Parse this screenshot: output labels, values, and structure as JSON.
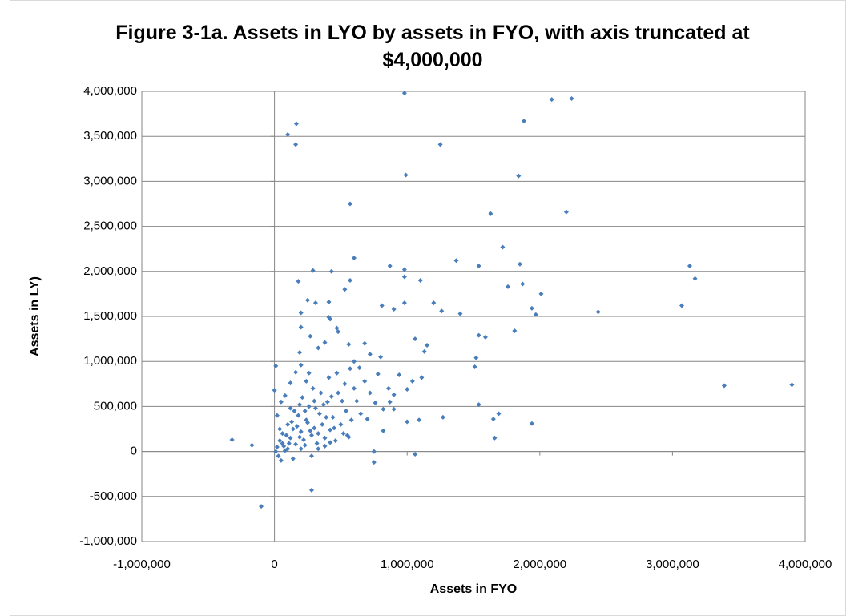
{
  "chart_data": {
    "type": "scatter",
    "title": "Figure 3-1a. Assets in LYO by assets in FYO, with axis truncated at $4,000,000",
    "x_label": "Assets in FYO",
    "y_label": "Assets in LY)",
    "color": "#4a7ebb",
    "grid": true,
    "xlim": [
      -1000000,
      4000000
    ],
    "ylim": [
      -1000000,
      4000000
    ],
    "xticks": [
      {
        "value": -1000000,
        "label": "-1,000,000"
      },
      0,
      {
        "value": 1000000,
        "label": "1,000,000"
      },
      {
        "value": 2000000,
        "label": "2,000,000"
      },
      {
        "value": 3000000,
        "label": "3,000,000"
      },
      {
        "value": 4000000,
        "label": "4,000,000"
      }
    ],
    "yticks": [
      {
        "value": -1000000,
        "label": "-1,000,000"
      },
      {
        "value": -500000,
        "label": "-500,000"
      },
      0,
      {
        "value": 500000,
        "label": "500,000"
      },
      {
        "value": 1000000,
        "label": "1,000,000"
      },
      {
        "value": 1500000,
        "label": "1,500,000"
      },
      {
        "value": 2000000,
        "label": "2,000,000"
      },
      {
        "value": 2500000,
        "label": "2,500,000"
      },
      {
        "value": 3000000,
        "label": "3,000,000"
      },
      {
        "value": 3500000,
        "label": "3,500,000"
      },
      {
        "value": 4000000,
        "label": "4,000,000"
      }
    ],
    "x": [
      980000,
      2240000,
      2090000,
      165000,
      100000,
      160000,
      1250000,
      1880000,
      990000,
      1840000,
      570000,
      1630000,
      2200000,
      3130000,
      3170000,
      3070000,
      2440000,
      3390000,
      3900000,
      1370000,
      1540000,
      1850000,
      1870000,
      2010000,
      1720000,
      1760000,
      1940000,
      1970000,
      1810000,
      1400000,
      1200000,
      1260000,
      1100000,
      980000,
      870000,
      600000,
      980000,
      810000,
      900000,
      980000,
      1520000,
      1540000,
      1590000,
      1510000,
      1540000,
      1940000,
      1650000,
      1690000,
      1660000,
      1060000,
      750000,
      750000,
      -100000,
      -320000,
      -170000,
      280000,
      290000,
      430000,
      570000,
      530000,
      180000,
      410000,
      200000,
      410000,
      1270000,
      1130000,
      1150000,
      1110000,
      1060000,
      1000000,
      1040000,
      1090000,
      1000000,
      900000,
      870000,
      820000,
      800000,
      720000,
      640000,
      680000,
      600000,
      560000,
      480000,
      470000,
      420000,
      380000,
      330000,
      270000,
      200000,
      190000,
      310000,
      250000,
      20000,
      40000,
      60000,
      80000,
      100000,
      120000,
      140000,
      160000,
      180000,
      200000,
      220000,
      240000,
      260000,
      280000,
      300000,
      320000,
      340000,
      360000,
      380000,
      400000,
      420000,
      440000,
      460000,
      480000,
      500000,
      520000,
      540000,
      560000,
      580000,
      600000,
      30000,
      50000,
      10000,
      70000,
      90000,
      110000,
      130000,
      150000,
      170000,
      190000,
      210000,
      230000,
      250000,
      270000,
      290000,
      310000,
      330000,
      350000,
      370000,
      390000,
      410000,
      430000,
      450000,
      470000,
      510000,
      530000,
      550000,
      570000,
      620000,
      650000,
      680000,
      700000,
      720000,
      760000,
      780000,
      820000,
      860000,
      900000,
      940000,
      0,
      20000,
      50000,
      80000,
      120000,
      160000,
      200000,
      240000,
      10000,
      280000,
      140000,
      100000,
      60000,
      40000,
      200000,
      330000,
      380000,
      420000,
      120000,
      190000,
      230000,
      300000,
      260000
    ],
    "y": [
      3980000,
      3920000,
      3910000,
      3640000,
      3520000,
      3410000,
      3410000,
      3670000,
      3070000,
      3060000,
      2750000,
      2640000,
      2660000,
      2060000,
      1920000,
      1620000,
      1550000,
      730000,
      740000,
      2120000,
      2060000,
      2080000,
      1860000,
      1750000,
      2270000,
      1830000,
      1590000,
      1520000,
      1340000,
      1530000,
      1650000,
      1560000,
      1900000,
      1940000,
      2060000,
      2150000,
      2020000,
      1620000,
      1580000,
      1650000,
      1040000,
      1290000,
      1270000,
      940000,
      520000,
      310000,
      360000,
      420000,
      150000,
      -30000,
      -120000,
      0,
      -610000,
      130000,
      70000,
      -430000,
      2010000,
      2000000,
      1900000,
      1800000,
      1890000,
      1660000,
      1540000,
      1490000,
      380000,
      1110000,
      1180000,
      820000,
      1250000,
      690000,
      780000,
      350000,
      330000,
      470000,
      550000,
      230000,
      1050000,
      1080000,
      930000,
      1200000,
      1000000,
      1190000,
      1330000,
      1370000,
      1470000,
      1210000,
      1150000,
      1280000,
      1380000,
      1100000,
      1650000,
      1680000,
      50000,
      120000,
      200000,
      10000,
      300000,
      150000,
      250000,
      80000,
      400000,
      220000,
      130000,
      350000,
      500000,
      180000,
      260000,
      90000,
      420000,
      300000,
      150000,
      550000,
      240000,
      380000,
      120000,
      650000,
      300000,
      200000,
      450000,
      160000,
      350000,
      700000,
      -50000,
      -100000,
      0,
      60000,
      180000,
      90000,
      330000,
      450000,
      280000,
      160000,
      600000,
      70000,
      320000,
      230000,
      700000,
      480000,
      200000,
      650000,
      520000,
      380000,
      820000,
      610000,
      260000,
      870000,
      560000,
      750000,
      180000,
      920000,
      560000,
      420000,
      780000,
      360000,
      650000,
      540000,
      860000,
      470000,
      700000,
      630000,
      850000,
      680000,
      400000,
      550000,
      620000,
      760000,
      880000,
      960000,
      780000,
      950000,
      -50000,
      -80000,
      30000,
      90000,
      250000,
      30000,
      30000,
      60000,
      100000,
      480000,
      520000,
      450000,
      560000,
      870000
    ]
  }
}
